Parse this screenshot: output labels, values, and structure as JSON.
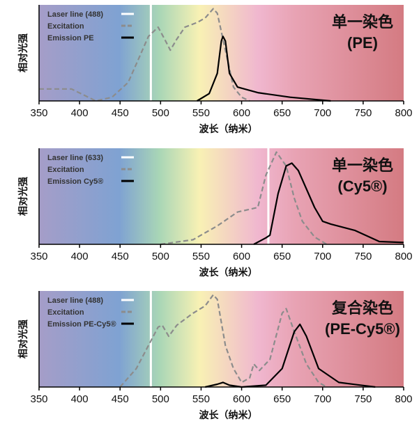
{
  "colors": {
    "excitation": "#8c8c8c",
    "emission": "#000000",
    "laser": "#ffffff"
  },
  "chart_data": [
    {
      "type": "line",
      "title_line1": "单一染色",
      "title_line2": "(PE)",
      "xlabel": "波长（纳米）",
      "ylabel": "相对光强",
      "xlim": [
        350,
        800
      ],
      "ylim": [
        0,
        1
      ],
      "xticks": [
        "350",
        "400",
        "450",
        "500",
        "550",
        "600",
        "650",
        "700",
        "750",
        "800"
      ],
      "grid": false,
      "legend": "top-left",
      "laser": {
        "label": "Laser line (488)",
        "x": 488
      },
      "series": [
        {
          "name": "Excitation",
          "style": "dashed",
          "x": [
            350,
            390,
            420,
            440,
            460,
            475,
            485,
            497,
            505,
            512,
            520,
            530,
            545,
            555,
            565,
            570,
            580,
            590,
            600,
            610
          ],
          "y": [
            0.13,
            0.13,
            0.0,
            0.04,
            0.2,
            0.5,
            0.7,
            0.8,
            0.67,
            0.55,
            0.67,
            0.8,
            0.85,
            0.9,
            1.0,
            0.95,
            0.55,
            0.15,
            0.04,
            0.0
          ]
        },
        {
          "name": "Emission PE",
          "style": "solid",
          "x": [
            545,
            560,
            570,
            575,
            577,
            580,
            585,
            595,
            620,
            660,
            710
          ],
          "y": [
            0,
            0.08,
            0.3,
            0.65,
            0.7,
            0.65,
            0.3,
            0.15,
            0.09,
            0.04,
            0.0
          ]
        }
      ]
    },
    {
      "type": "line",
      "title_line1": "单一染色",
      "title_line2": "(Cy5®)",
      "xlabel": "波长（纳米）",
      "ylabel": "相对光强",
      "xlim": [
        350,
        800
      ],
      "ylim": [
        0,
        1
      ],
      "xticks": [
        "350",
        "400",
        "450",
        "500",
        "550",
        "600",
        "650",
        "700",
        "750",
        "800"
      ],
      "grid": false,
      "legend": "top-left",
      "laser": {
        "label": "Laser line (633)",
        "x": 633
      },
      "series": [
        {
          "name": "Excitation",
          "style": "dashed",
          "x": [
            500,
            540,
            570,
            595,
            610,
            620,
            630,
            643,
            655,
            665,
            675,
            690,
            705
          ],
          "y": [
            0,
            0.05,
            0.2,
            0.35,
            0.38,
            0.4,
            0.75,
            1.0,
            0.85,
            0.5,
            0.25,
            0.08,
            0.0
          ]
        },
        {
          "name": "Emission Cy5®",
          "style": "solid",
          "x": [
            615,
            630,
            635,
            645,
            655,
            662,
            670,
            690,
            700,
            710,
            740,
            770,
            800
          ],
          "y": [
            0,
            0.07,
            0.1,
            0.55,
            0.85,
            0.88,
            0.8,
            0.4,
            0.25,
            0.22,
            0.15,
            0.03,
            0.02
          ]
        }
      ]
    },
    {
      "type": "line",
      "title_line1": "复合染色",
      "title_line2": "(PE-Cy5®)",
      "xlabel": "波长（纳米）",
      "ylabel": "相对光强",
      "xlim": [
        350,
        800
      ],
      "ylim": [
        0,
        1
      ],
      "xticks": [
        "350",
        "400",
        "450",
        "500",
        "550",
        "600",
        "650",
        "700",
        "750",
        "800"
      ],
      "grid": false,
      "legend": "top-left",
      "laser": {
        "label": "Laser line (488)",
        "x": 488
      },
      "series": [
        {
          "name": "Excitation",
          "style": "dashed",
          "x": [
            450,
            470,
            485,
            497,
            502,
            510,
            520,
            540,
            555,
            565,
            570,
            580,
            590,
            600,
            610,
            615,
            622,
            635,
            650,
            655,
            665,
            680,
            695,
            705
          ],
          "y": [
            0,
            0.2,
            0.45,
            0.65,
            0.67,
            0.55,
            0.67,
            0.8,
            0.88,
            1.0,
            0.95,
            0.45,
            0.2,
            0.05,
            0.1,
            0.25,
            0.18,
            0.3,
            0.8,
            0.85,
            0.6,
            0.25,
            0.05,
            0.0
          ]
        },
        {
          "name": "Emission PE-Cy5®",
          "style": "solid",
          "x": [
            555,
            570,
            577,
            585,
            600,
            630,
            650,
            665,
            672,
            680,
            695,
            720,
            765
          ],
          "y": [
            0,
            0.03,
            0.05,
            0.02,
            0.0,
            0.02,
            0.2,
            0.6,
            0.68,
            0.55,
            0.2,
            0.05,
            0.0
          ]
        }
      ]
    }
  ]
}
